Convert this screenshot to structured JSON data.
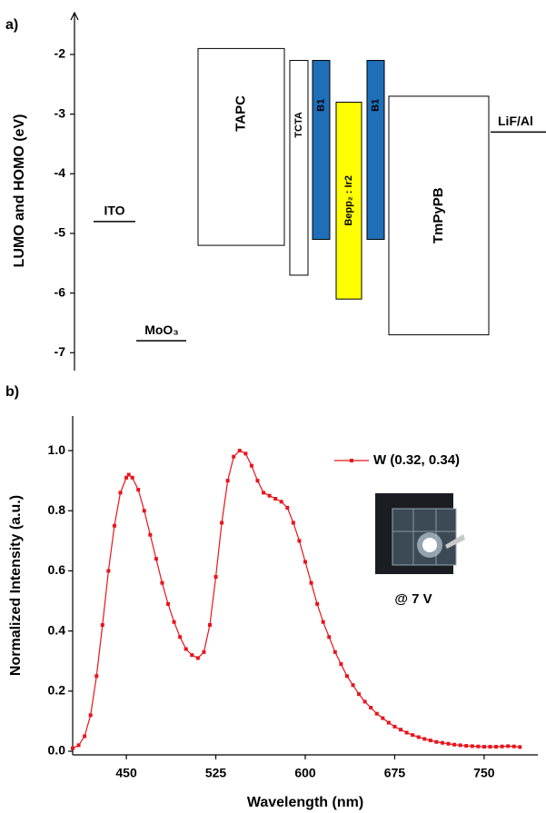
{
  "chart_data": [
    {
      "type": "energy-level",
      "label": "a)",
      "ylabel": "LUMO and HOMO (eV)",
      "ylim": [
        -7.3,
        -1.3
      ],
      "yticks": [
        -2,
        -3,
        -4,
        -5,
        -6,
        -7
      ],
      "layers": [
        {
          "name": "TAPC",
          "lumo": -1.9,
          "homo": -5.2,
          "color": "#ffffff"
        },
        {
          "name": "TCTA",
          "lumo": -2.1,
          "homo": -5.7,
          "color": "#ffffff"
        },
        {
          "name": "B1",
          "lumo": -2.1,
          "homo": -5.1,
          "color": "#1f6eb8"
        },
        {
          "name": "Bepp₂ : Ir2",
          "lumo": -2.8,
          "homo": -6.1,
          "color": "#ffff00"
        },
        {
          "name": "B1",
          "lumo": -2.1,
          "homo": -5.1,
          "color": "#1f6eb8"
        },
        {
          "name": "TmPyPB",
          "lumo": -2.7,
          "homo": -6.7,
          "color": "#ffffff"
        }
      ],
      "electrodes": [
        {
          "name": "ITO",
          "level": -4.8
        },
        {
          "name": "MoO₃",
          "level": -6.8
        },
        {
          "name": "LiF/Al",
          "level": -3.3
        }
      ]
    },
    {
      "type": "line",
      "label": "b)",
      "xlabel": "Wavelength (nm)",
      "ylabel": "Normalized Intensity (a.u.)",
      "xlim": [
        405,
        795
      ],
      "xticks": [
        450,
        525,
        600,
        675,
        750
      ],
      "ylim": [
        -0.012,
        1.115
      ],
      "yticks": [
        {
          "value": 0,
          "label": "0.0"
        },
        0.2,
        0.4,
        0.6,
        0.8,
        {
          "value": 1,
          "label": "1.0"
        }
      ],
      "annotation": "@ 7 V",
      "x": [
        405,
        410,
        415,
        420,
        425,
        430,
        435,
        440,
        445,
        450,
        452,
        455,
        460,
        465,
        470,
        475,
        480,
        485,
        490,
        495,
        500,
        505,
        510,
        515,
        520,
        525,
        530,
        535,
        540,
        545,
        550,
        555,
        560,
        565,
        570,
        575,
        580,
        585,
        590,
        595,
        600,
        605,
        610,
        615,
        620,
        625,
        630,
        635,
        640,
        645,
        650,
        655,
        660,
        665,
        670,
        675,
        680,
        685,
        690,
        695,
        700,
        705,
        710,
        715,
        720,
        725,
        730,
        735,
        740,
        745,
        750,
        755,
        760,
        765,
        770,
        775,
        780
      ],
      "series": [
        {
          "name": "W (0.32, 0.34)",
          "color": "#e8141c",
          "values": [
            0.01,
            0.02,
            0.05,
            0.12,
            0.25,
            0.42,
            0.6,
            0.75,
            0.86,
            0.91,
            0.92,
            0.91,
            0.87,
            0.8,
            0.72,
            0.64,
            0.56,
            0.49,
            0.43,
            0.38,
            0.34,
            0.32,
            0.31,
            0.33,
            0.42,
            0.58,
            0.76,
            0.9,
            0.98,
            1.0,
            0.99,
            0.95,
            0.9,
            0.86,
            0.85,
            0.84,
            0.83,
            0.81,
            0.76,
            0.7,
            0.63,
            0.56,
            0.49,
            0.43,
            0.38,
            0.33,
            0.29,
            0.25,
            0.22,
            0.19,
            0.165,
            0.145,
            0.125,
            0.11,
            0.095,
            0.082,
            0.072,
            0.062,
            0.054,
            0.047,
            0.041,
            0.036,
            0.031,
            0.028,
            0.025,
            0.022,
            0.02,
            0.018,
            0.017,
            0.016,
            0.015,
            0.015,
            0.015,
            0.016,
            0.017,
            0.016,
            0.014
          ]
        }
      ]
    }
  ]
}
